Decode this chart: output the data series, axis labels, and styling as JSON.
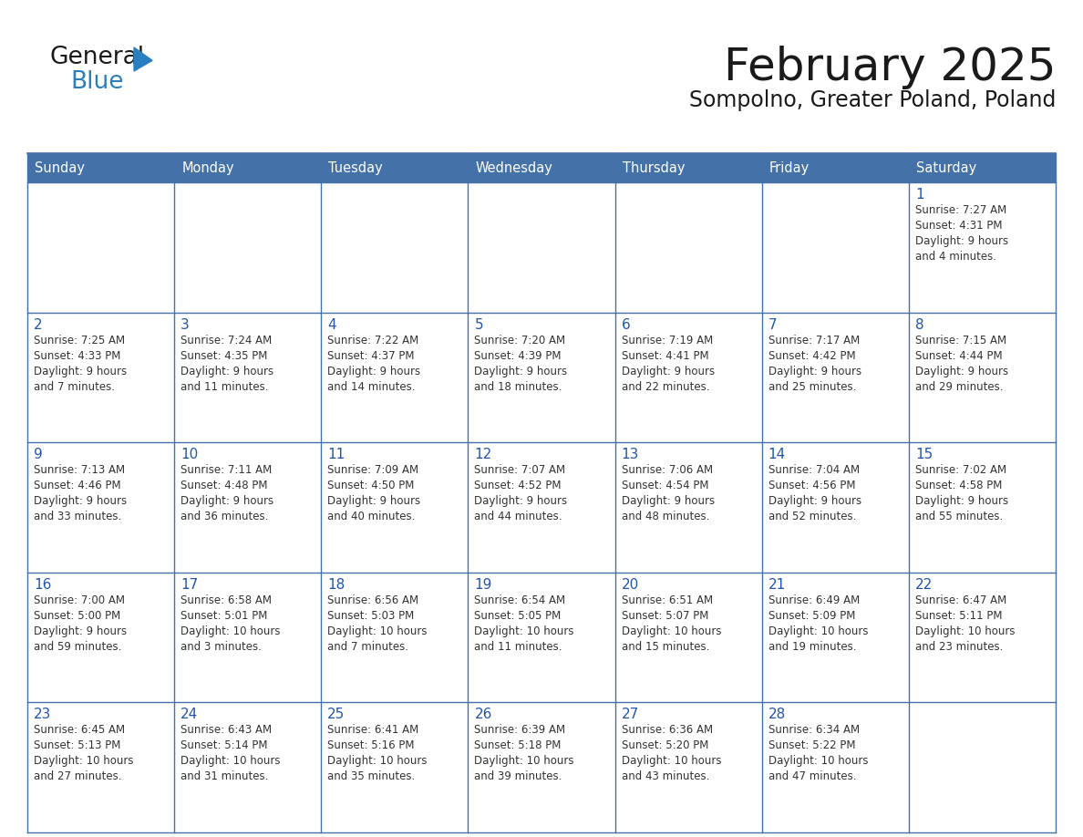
{
  "title": "February 2025",
  "subtitle": "Sompolno, Greater Poland, Poland",
  "header_color": "#4472a8",
  "header_text_color": "#ffffff",
  "cell_bg_color": "#ffffff",
  "border_color": "#4472a8",
  "title_color": "#1a1a1a",
  "subtitle_color": "#1a1a1a",
  "day_number_color": "#2255aa",
  "day_info_color": "#333333",
  "days_of_week": [
    "Sunday",
    "Monday",
    "Tuesday",
    "Wednesday",
    "Thursday",
    "Friday",
    "Saturday"
  ],
  "weeks": [
    [
      {
        "day": null,
        "info": ""
      },
      {
        "day": null,
        "info": ""
      },
      {
        "day": null,
        "info": ""
      },
      {
        "day": null,
        "info": ""
      },
      {
        "day": null,
        "info": ""
      },
      {
        "day": null,
        "info": ""
      },
      {
        "day": 1,
        "info": "Sunrise: 7:27 AM\nSunset: 4:31 PM\nDaylight: 9 hours\nand 4 minutes."
      }
    ],
    [
      {
        "day": 2,
        "info": "Sunrise: 7:25 AM\nSunset: 4:33 PM\nDaylight: 9 hours\nand 7 minutes."
      },
      {
        "day": 3,
        "info": "Sunrise: 7:24 AM\nSunset: 4:35 PM\nDaylight: 9 hours\nand 11 minutes."
      },
      {
        "day": 4,
        "info": "Sunrise: 7:22 AM\nSunset: 4:37 PM\nDaylight: 9 hours\nand 14 minutes."
      },
      {
        "day": 5,
        "info": "Sunrise: 7:20 AM\nSunset: 4:39 PM\nDaylight: 9 hours\nand 18 minutes."
      },
      {
        "day": 6,
        "info": "Sunrise: 7:19 AM\nSunset: 4:41 PM\nDaylight: 9 hours\nand 22 minutes."
      },
      {
        "day": 7,
        "info": "Sunrise: 7:17 AM\nSunset: 4:42 PM\nDaylight: 9 hours\nand 25 minutes."
      },
      {
        "day": 8,
        "info": "Sunrise: 7:15 AM\nSunset: 4:44 PM\nDaylight: 9 hours\nand 29 minutes."
      }
    ],
    [
      {
        "day": 9,
        "info": "Sunrise: 7:13 AM\nSunset: 4:46 PM\nDaylight: 9 hours\nand 33 minutes."
      },
      {
        "day": 10,
        "info": "Sunrise: 7:11 AM\nSunset: 4:48 PM\nDaylight: 9 hours\nand 36 minutes."
      },
      {
        "day": 11,
        "info": "Sunrise: 7:09 AM\nSunset: 4:50 PM\nDaylight: 9 hours\nand 40 minutes."
      },
      {
        "day": 12,
        "info": "Sunrise: 7:07 AM\nSunset: 4:52 PM\nDaylight: 9 hours\nand 44 minutes."
      },
      {
        "day": 13,
        "info": "Sunrise: 7:06 AM\nSunset: 4:54 PM\nDaylight: 9 hours\nand 48 minutes."
      },
      {
        "day": 14,
        "info": "Sunrise: 7:04 AM\nSunset: 4:56 PM\nDaylight: 9 hours\nand 52 minutes."
      },
      {
        "day": 15,
        "info": "Sunrise: 7:02 AM\nSunset: 4:58 PM\nDaylight: 9 hours\nand 55 minutes."
      }
    ],
    [
      {
        "day": 16,
        "info": "Sunrise: 7:00 AM\nSunset: 5:00 PM\nDaylight: 9 hours\nand 59 minutes."
      },
      {
        "day": 17,
        "info": "Sunrise: 6:58 AM\nSunset: 5:01 PM\nDaylight: 10 hours\nand 3 minutes."
      },
      {
        "day": 18,
        "info": "Sunrise: 6:56 AM\nSunset: 5:03 PM\nDaylight: 10 hours\nand 7 minutes."
      },
      {
        "day": 19,
        "info": "Sunrise: 6:54 AM\nSunset: 5:05 PM\nDaylight: 10 hours\nand 11 minutes."
      },
      {
        "day": 20,
        "info": "Sunrise: 6:51 AM\nSunset: 5:07 PM\nDaylight: 10 hours\nand 15 minutes."
      },
      {
        "day": 21,
        "info": "Sunrise: 6:49 AM\nSunset: 5:09 PM\nDaylight: 10 hours\nand 19 minutes."
      },
      {
        "day": 22,
        "info": "Sunrise: 6:47 AM\nSunset: 5:11 PM\nDaylight: 10 hours\nand 23 minutes."
      }
    ],
    [
      {
        "day": 23,
        "info": "Sunrise: 6:45 AM\nSunset: 5:13 PM\nDaylight: 10 hours\nand 27 minutes."
      },
      {
        "day": 24,
        "info": "Sunrise: 6:43 AM\nSunset: 5:14 PM\nDaylight: 10 hours\nand 31 minutes."
      },
      {
        "day": 25,
        "info": "Sunrise: 6:41 AM\nSunset: 5:16 PM\nDaylight: 10 hours\nand 35 minutes."
      },
      {
        "day": 26,
        "info": "Sunrise: 6:39 AM\nSunset: 5:18 PM\nDaylight: 10 hours\nand 39 minutes."
      },
      {
        "day": 27,
        "info": "Sunrise: 6:36 AM\nSunset: 5:20 PM\nDaylight: 10 hours\nand 43 minutes."
      },
      {
        "day": 28,
        "info": "Sunrise: 6:34 AM\nSunset: 5:22 PM\nDaylight: 10 hours\nand 47 minutes."
      },
      {
        "day": null,
        "info": ""
      }
    ]
  ],
  "logo_general_color": "#1a1a1a",
  "logo_blue_color": "#2a7fc1",
  "logo_triangle_color": "#2a7fc1"
}
